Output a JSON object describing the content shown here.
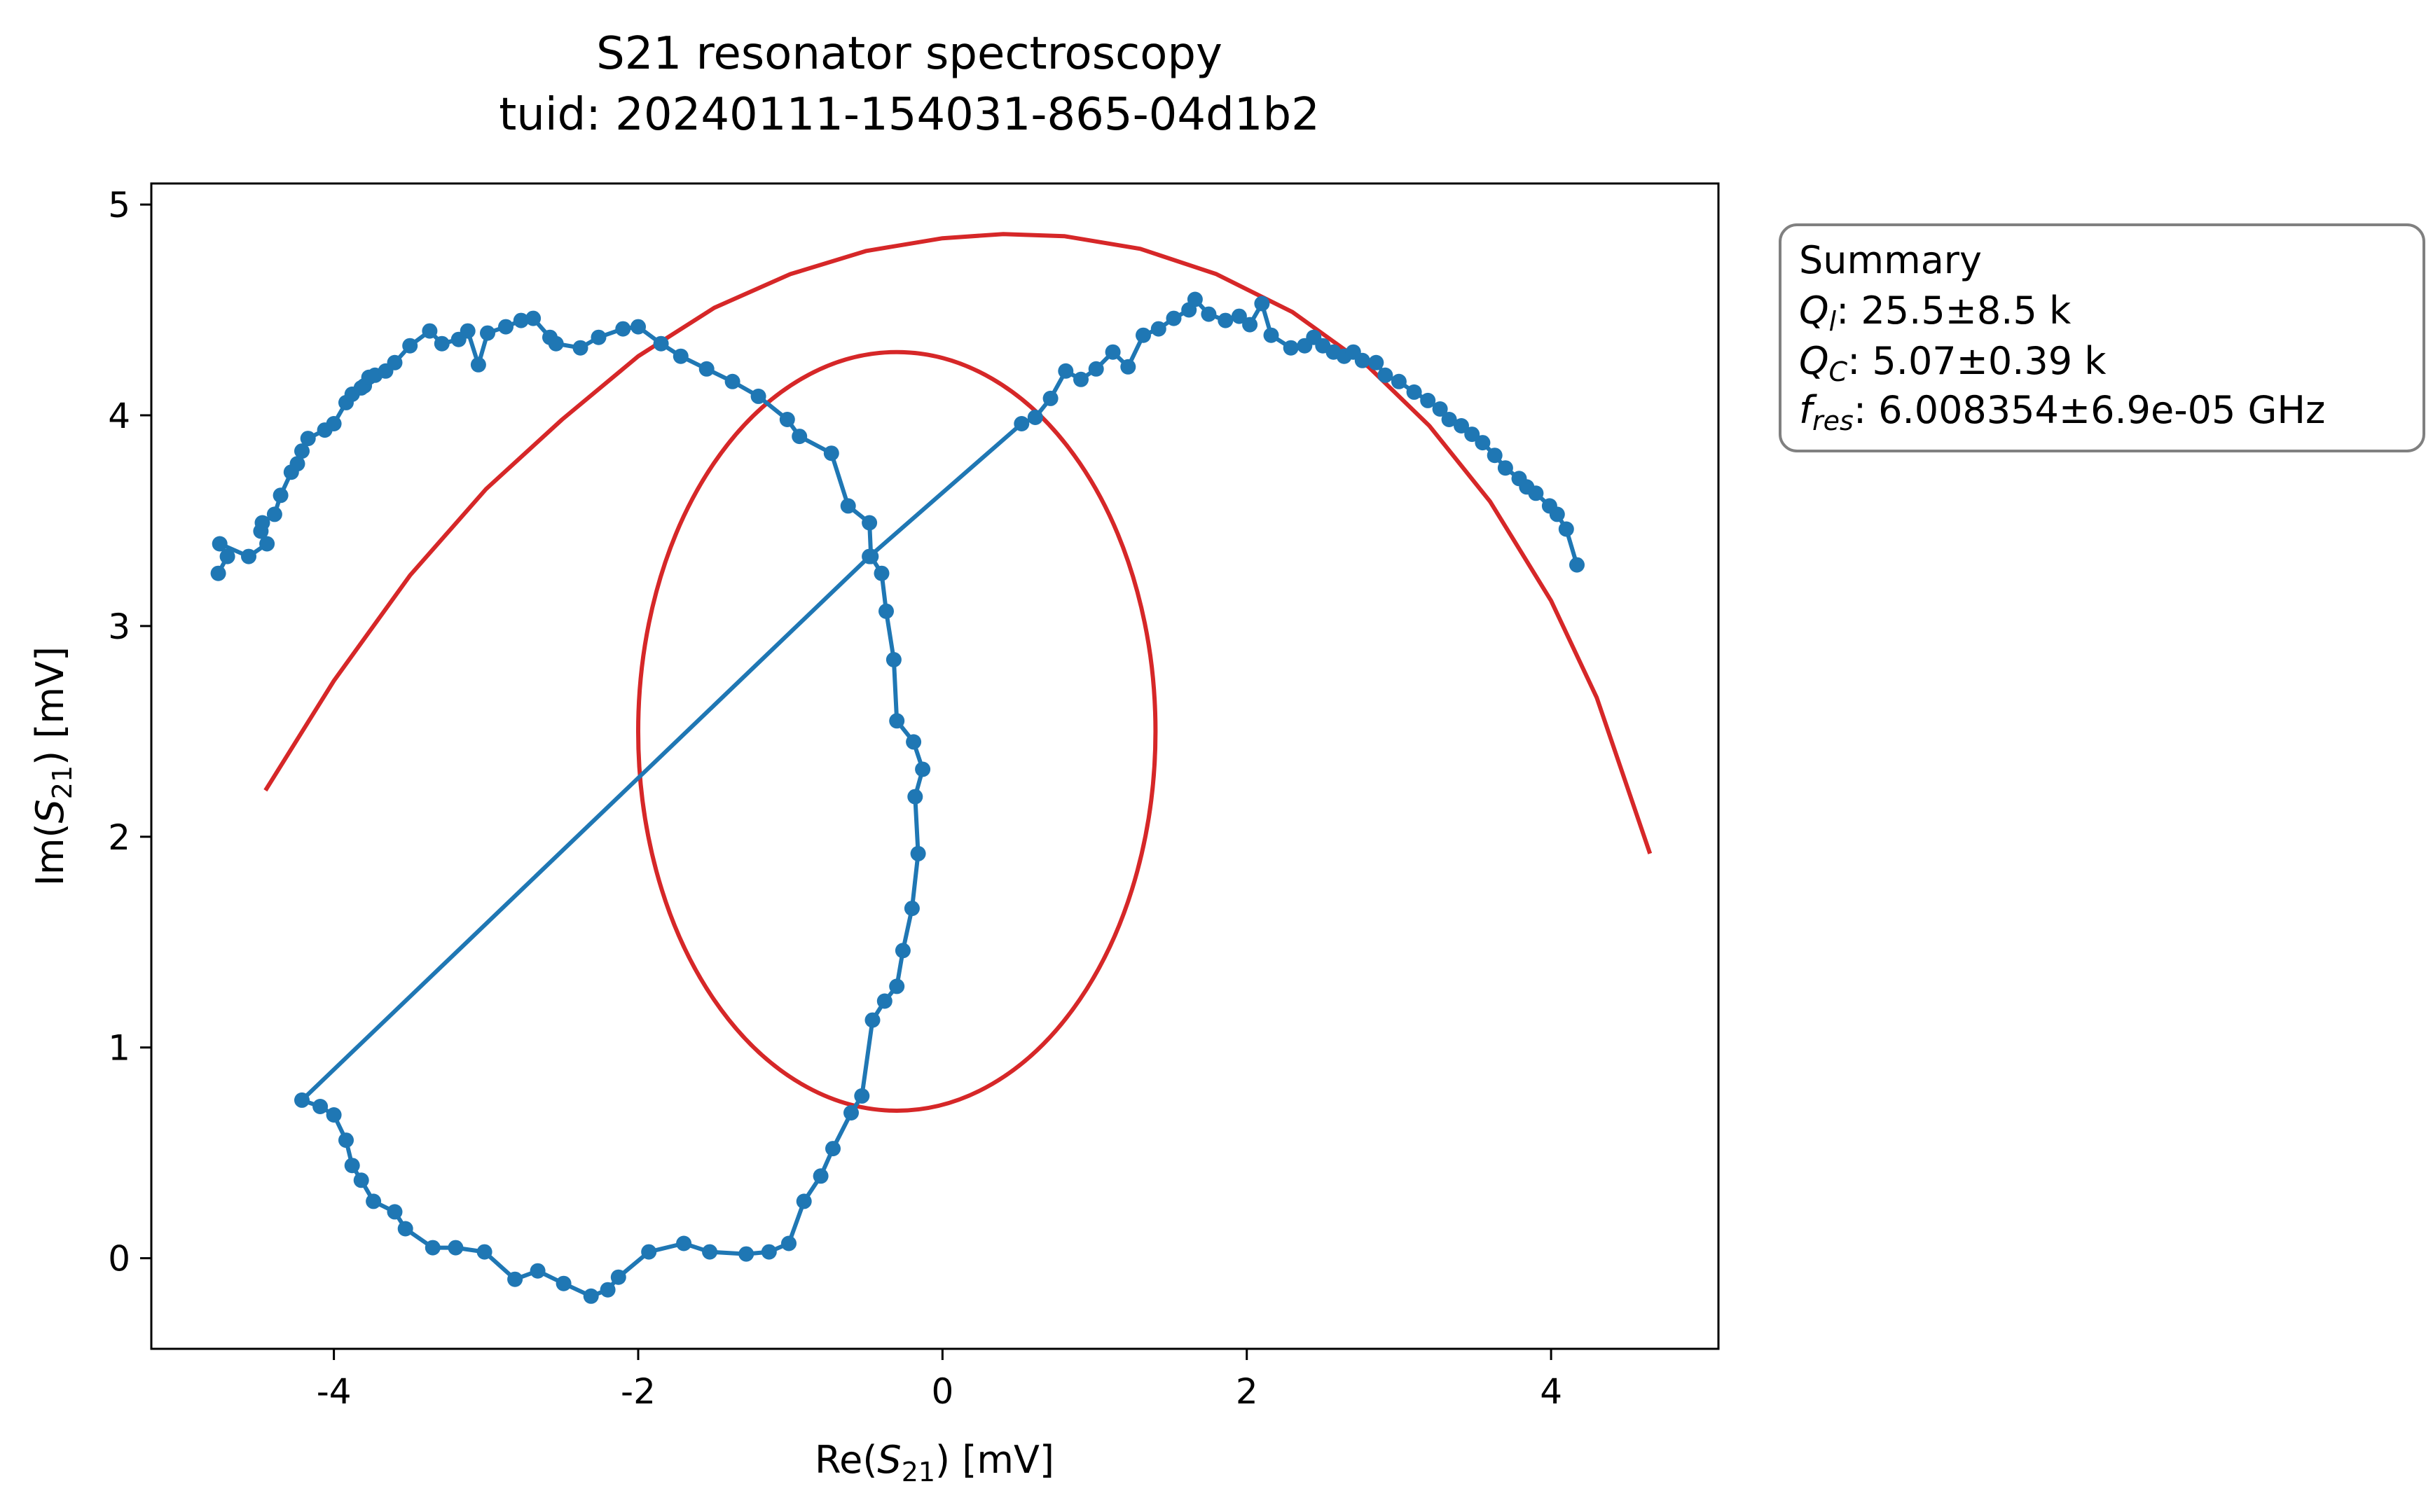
{
  "chart_data": {
    "type": "line",
    "title": "S21 resonator spectroscopy",
    "subtitle": "tuid: 20240111-154031-865-04d1b2",
    "xlabel": {
      "pre": "Re(",
      "sym": "S",
      "sub": "21",
      "post": ") [mV]"
    },
    "ylabel": {
      "pre": "Im(",
      "sym": "S",
      "sub": "21",
      "post": ") [mV]"
    },
    "xlim": [
      -5.2,
      5.1
    ],
    "ylim": [
      -0.43,
      5.1
    ],
    "xticks": [
      -4,
      -2,
      0,
      2,
      4
    ],
    "yticks": [
      0,
      1,
      2,
      3,
      4,
      5
    ],
    "grid": false,
    "series": [
      {
        "kind": "data",
        "color": "#1f77b4",
        "marker": "circle",
        "x": [
          -4.76,
          -4.7,
          -4.75,
          -4.56,
          -4.44,
          -4.48,
          -4.47,
          -4.39,
          -4.35,
          -4.28,
          -4.24,
          -4.21,
          -4.17,
          -4.06,
          -4.0,
          -3.92,
          -3.88,
          -3.82,
          -3.8,
          -3.77,
          -3.73,
          -3.66,
          -3.6,
          -3.5,
          -3.37,
          -3.29,
          -3.18,
          -3.12,
          -3.05,
          -2.99,
          -2.87,
          -2.77,
          -2.69,
          -2.58,
          -2.54,
          -2.38,
          -2.26,
          -2.1,
          -2.0,
          -1.85,
          -1.72,
          -1.55,
          -1.38,
          -1.21,
          -1.02,
          -0.94,
          -0.73,
          -0.62,
          -0.48,
          -0.47,
          -0.4,
          -0.37,
          -0.32,
          -0.3,
          -0.19,
          -0.13,
          -0.18,
          -0.16,
          -0.2,
          -0.26,
          -0.3,
          -0.38,
          -0.46,
          -0.53,
          -0.6,
          -0.72,
          -0.8,
          -0.91,
          -1.01,
          -1.14,
          -1.29,
          -1.53,
          -1.7,
          -1.93,
          -2.13,
          -2.2,
          -2.31,
          -2.49,
          -2.66,
          -2.81,
          -3.01,
          -3.2,
          -3.35,
          -3.53,
          -3.6,
          -3.74,
          -3.82,
          -3.88,
          -3.92,
          -4.0,
          -4.09,
          -4.21,
          -0.48,
          0.52,
          0.61,
          0.71,
          0.81,
          0.91,
          1.01,
          1.12,
          1.22,
          1.32,
          1.42,
          1.52,
          1.62,
          1.66,
          1.75,
          1.86,
          1.95,
          2.02,
          2.1,
          2.16,
          2.29,
          2.38,
          2.44,
          2.5,
          2.57,
          2.64,
          2.7,
          2.76,
          2.85,
          2.91,
          3.0,
          3.1,
          3.19,
          3.27,
          3.33,
          3.41,
          3.48,
          3.55,
          3.63,
          3.7,
          3.79,
          3.84,
          3.9,
          3.99,
          4.04,
          4.1,
          4.17
        ],
        "y": [
          3.25,
          3.33,
          3.39,
          3.33,
          3.39,
          3.45,
          3.49,
          3.53,
          3.62,
          3.73,
          3.77,
          3.83,
          3.89,
          3.93,
          3.96,
          4.06,
          4.1,
          4.13,
          4.14,
          4.18,
          4.19,
          4.21,
          4.25,
          4.33,
          4.4,
          4.34,
          4.36,
          4.4,
          4.24,
          4.39,
          4.42,
          4.45,
          4.46,
          4.37,
          4.34,
          4.32,
          4.37,
          4.41,
          4.42,
          4.34,
          4.28,
          4.22,
          4.16,
          4.09,
          3.98,
          3.9,
          3.82,
          3.57,
          3.49,
          3.33,
          3.25,
          3.07,
          2.84,
          2.55,
          2.45,
          2.32,
          2.19,
          1.92,
          1.66,
          1.46,
          1.29,
          1.22,
          1.13,
          0.77,
          0.69,
          0.52,
          0.39,
          0.27,
          0.07,
          0.03,
          0.02,
          0.03,
          0.07,
          0.03,
          -0.09,
          -0.15,
          -0.18,
          -0.12,
          -0.06,
          -0.1,
          0.03,
          0.05,
          0.05,
          0.14,
          0.22,
          0.27,
          0.37,
          0.44,
          0.56,
          0.68,
          0.72,
          0.75,
          3.33,
          3.96,
          3.99,
          4.08,
          4.21,
          4.17,
          4.22,
          4.3,
          4.23,
          4.38,
          4.41,
          4.46,
          4.5,
          4.55,
          4.48,
          4.45,
          4.47,
          4.43,
          4.53,
          4.38,
          4.32,
          4.33,
          4.37,
          4.33,
          4.3,
          4.28,
          4.3,
          4.26,
          4.25,
          4.19,
          4.16,
          4.11,
          4.07,
          4.03,
          3.98,
          3.95,
          3.91,
          3.87,
          3.81,
          3.75,
          3.7,
          3.66,
          3.63,
          3.57,
          3.53,
          3.46,
          3.29
        ]
      },
      {
        "kind": "fit",
        "color": "#d62728",
        "x": [
          -4.45,
          -4.0,
          -3.5,
          -3.0,
          -2.5,
          -2.0,
          -1.5,
          -1.0,
          -0.5,
          0.0,
          0.4,
          0.8,
          1.3,
          1.8,
          2.3,
          2.8,
          3.2,
          3.6,
          4.0,
          4.3,
          4.65
        ],
        "y": [
          2.22,
          2.74,
          3.24,
          3.65,
          3.98,
          4.28,
          4.51,
          4.67,
          4.78,
          4.84,
          4.86,
          4.85,
          4.79,
          4.67,
          4.49,
          4.23,
          3.95,
          3.59,
          3.12,
          2.66,
          1.92
        ]
      },
      {
        "kind": "fit-circle",
        "color": "#d62728",
        "center": [
          -0.3,
          2.5
        ],
        "radii": [
          1.7,
          1.8
        ]
      }
    ],
    "summary": {
      "heading": "Summary",
      "lines": [
        {
          "sym": "Q",
          "sub": "l",
          "value": ": 25.5±8.5 k"
        },
        {
          "sym": "Q",
          "sub": "C",
          "value": ": 5.07±0.39 k"
        },
        {
          "sym": "f",
          "sub": "res",
          "value": ": 6.008354±6.9e-05 GHz"
        }
      ]
    }
  }
}
